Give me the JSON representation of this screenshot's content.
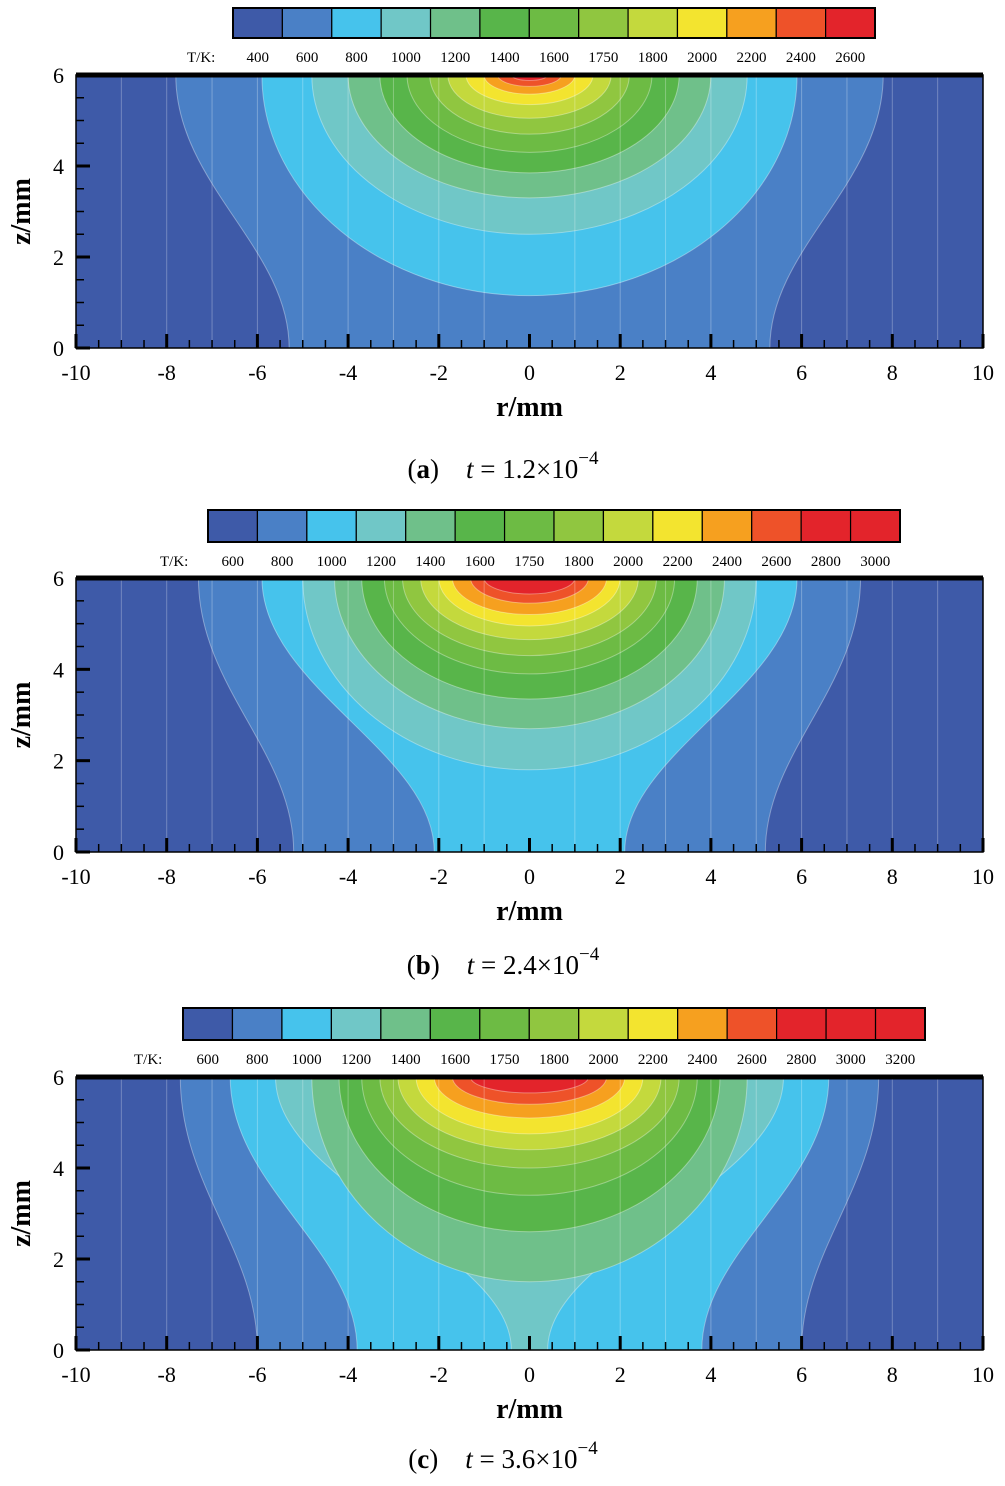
{
  "colors": [
    "#3e5aa8",
    "#4a80c6",
    "#46c3ec",
    "#70c7c7",
    "#6fc08a",
    "#58b54a",
    "#6dbb44",
    "#90c640",
    "#c4d93d",
    "#f3e42f",
    "#f6a01f",
    "#ee5229",
    "#e3242b"
  ],
  "chart_data": [
    {
      "type": "heatmap",
      "panel": "a",
      "caption": {
        "letter": "a",
        "t_symbol": "t",
        "equals": "=",
        "mantissa": "1.2×10",
        "exponent": "−4"
      },
      "t_seconds": 0.00012,
      "colorbar": {
        "title": "T/K:",
        "levels": [
          "400",
          "600",
          "800",
          "1000",
          "1200",
          "1400",
          "1600",
          "1750",
          "1800",
          "2000",
          "2200",
          "2400",
          "2600"
        ]
      },
      "xlabel": "r/mm",
      "ylabel": "z/mm",
      "xlim": [
        -10,
        10
      ],
      "ylim": [
        0,
        6
      ],
      "xticks": [
        "-10",
        "-8",
        "-6",
        "-4",
        "-2",
        "0",
        "2",
        "4",
        "6",
        "8",
        "10"
      ],
      "yticks": [
        "0",
        "2",
        "4",
        "6"
      ],
      "contours": [
        {
          "level_index": 1,
          "halfwidth_top": 7.8,
          "depth": 6.0,
          "fill_to_bottom": true,
          "halfwidth_bottom": 5.3
        },
        {
          "level_index": 2,
          "halfwidth_top": 5.9,
          "depth": 4.85
        },
        {
          "level_index": 3,
          "halfwidth_top": 4.8,
          "depth": 3.5
        },
        {
          "level_index": 4,
          "halfwidth_top": 4.0,
          "depth": 2.7
        },
        {
          "level_index": 5,
          "halfwidth_top": 3.3,
          "depth": 2.15
        },
        {
          "level_index": 6,
          "halfwidth_top": 2.7,
          "depth": 1.7
        },
        {
          "level_index": 7,
          "halfwidth_top": 2.2,
          "depth": 1.3
        },
        {
          "level_index": 8,
          "halfwidth_top": 1.8,
          "depth": 0.95
        },
        {
          "level_index": 9,
          "halfwidth_top": 1.4,
          "depth": 0.65
        },
        {
          "level_index": 10,
          "halfwidth_top": 1.0,
          "depth": 0.42
        },
        {
          "level_index": 11,
          "halfwidth_top": 0.7,
          "depth": 0.25
        },
        {
          "level_index": 12,
          "halfwidth_top": 0.4,
          "depth": 0.12
        }
      ]
    },
    {
      "type": "heatmap",
      "panel": "b",
      "caption": {
        "letter": "b",
        "t_symbol": "t",
        "equals": "=",
        "mantissa": "2.4×10",
        "exponent": "−4"
      },
      "t_seconds": 0.00024,
      "colorbar": {
        "title": "T/K:",
        "levels": [
          "600",
          "800",
          "1000",
          "1200",
          "1400",
          "1600",
          "1750",
          "1800",
          "2000",
          "2200",
          "2400",
          "2600",
          "2800",
          "3000"
        ]
      },
      "xlabel": "r/mm",
      "ylabel": "z/mm",
      "xlim": [
        -10,
        10
      ],
      "ylim": [
        0,
        6
      ],
      "xticks": [
        "-10",
        "-8",
        "-6",
        "-4",
        "-2",
        "0",
        "2",
        "4",
        "6",
        "8",
        "10"
      ],
      "yticks": [
        "0",
        "2",
        "4",
        "6"
      ],
      "contours": [
        {
          "level_index": 1,
          "halfwidth_top": 7.3,
          "depth": 6.0,
          "fill_to_bottom": true,
          "halfwidth_bottom": 5.2
        },
        {
          "level_index": 2,
          "halfwidth_top": 5.9,
          "depth": 6.0,
          "fill_to_bottom": true,
          "halfwidth_bottom": 2.1
        },
        {
          "level_index": 3,
          "halfwidth_top": 5.0,
          "depth": 4.2
        },
        {
          "level_index": 4,
          "halfwidth_top": 4.3,
          "depth": 3.3
        },
        {
          "level_index": 5,
          "halfwidth_top": 3.7,
          "depth": 2.65
        },
        {
          "level_index": 6,
          "halfwidth_top": 3.2,
          "depth": 2.1
        },
        {
          "level_index": 7,
          "halfwidth_top": 2.8,
          "depth": 1.7
        },
        {
          "level_index": 8,
          "halfwidth_top": 2.4,
          "depth": 1.35
        },
        {
          "level_index": 9,
          "halfwidth_top": 2.0,
          "depth": 1.05
        },
        {
          "level_index": 10,
          "halfwidth_top": 1.7,
          "depth": 0.8
        },
        {
          "level_index": 11,
          "halfwidth_top": 1.3,
          "depth": 0.55
        },
        {
          "level_index": 12,
          "halfwidth_top": 1.0,
          "depth": 0.35
        }
      ]
    },
    {
      "type": "heatmap",
      "panel": "c",
      "caption": {
        "letter": "c",
        "t_symbol": "t",
        "equals": "=",
        "mantissa": "3.6×10",
        "exponent": "−4"
      },
      "t_seconds": 0.00036,
      "colorbar": {
        "title": "T/K:",
        "levels": [
          "600",
          "800",
          "1000",
          "1200",
          "1400",
          "1600",
          "1750",
          "1800",
          "2000",
          "2200",
          "2400",
          "2600",
          "2800",
          "3000",
          "3200"
        ]
      },
      "xlabel": "r/mm",
      "ylabel": "z/mm",
      "xlim": [
        -10,
        10
      ],
      "ylim": [
        0,
        6
      ],
      "xticks": [
        "-10",
        "-8",
        "-6",
        "-4",
        "-2",
        "0",
        "2",
        "4",
        "6",
        "8",
        "10"
      ],
      "yticks": [
        "0",
        "2",
        "4",
        "6"
      ],
      "contours": [
        {
          "level_index": 1,
          "halfwidth_top": 7.7,
          "depth": 6.0,
          "fill_to_bottom": true,
          "halfwidth_bottom": 6.0
        },
        {
          "level_index": 2,
          "halfwidth_top": 6.6,
          "depth": 6.0,
          "fill_to_bottom": true,
          "halfwidth_bottom": 3.8
        },
        {
          "level_index": 3,
          "halfwidth_top": 5.6,
          "depth": 6.0,
          "fill_to_bottom": true,
          "halfwidth_bottom": 0.4
        },
        {
          "level_index": 4,
          "halfwidth_top": 4.8,
          "depth": 4.5
        },
        {
          "level_index": 5,
          "halfwidth_top": 4.2,
          "depth": 3.4
        },
        {
          "level_index": 6,
          "halfwidth_top": 3.7,
          "depth": 2.6
        },
        {
          "level_index": 7,
          "halfwidth_top": 3.3,
          "depth": 2.0
        },
        {
          "level_index": 8,
          "halfwidth_top": 2.9,
          "depth": 1.6
        },
        {
          "level_index": 9,
          "halfwidth_top": 2.5,
          "depth": 1.25
        },
        {
          "level_index": 10,
          "halfwidth_top": 2.1,
          "depth": 0.9
        },
        {
          "level_index": 11,
          "halfwidth_top": 1.7,
          "depth": 0.6
        },
        {
          "level_index": 12,
          "halfwidth_top": 1.3,
          "depth": 0.35
        }
      ]
    }
  ]
}
